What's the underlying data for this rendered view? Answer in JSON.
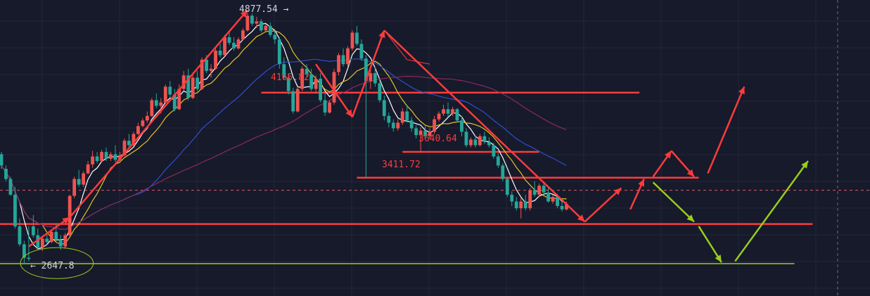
{
  "colors": {
    "background": "#161a2b",
    "grid": "#232838",
    "up": "#ef5350",
    "down": "#26a69a",
    "ma_white": "#ffffff",
    "ma_yellow": "#e6c229",
    "ma_blue": "#2f4fc9",
    "ma_purple": "#8a2a5c",
    "annotation_red": "#ff3b3b",
    "annotation_green": "#9acd1a",
    "crosshair": "#e05a6a",
    "price_label_light": "#d1d4dc"
  },
  "chart_data": {
    "type": "candlestick",
    "title": "",
    "xlabel": "",
    "ylabel": "",
    "ylim": [
      2500,
      5000
    ],
    "grid": true,
    "price_labels": {
      "high": "4877.54",
      "low": "2647.8",
      "level_1": "4166.82",
      "level_2": "3640.64",
      "level_3": "3411.72"
    },
    "candles": [
      [
        3620,
        3640,
        3520,
        3490
      ],
      [
        3490,
        3520,
        3400,
        3380
      ],
      [
        3400,
        3420,
        3260,
        3250
      ],
      [
        3260,
        3330,
        2980,
        2960
      ],
      [
        2980,
        3050,
        2820,
        2800
      ],
      [
        2820,
        2850,
        2700,
        2647.8
      ],
      [
        2700,
        2980,
        2690,
        2670
      ],
      [
        2980,
        3080,
        2900,
        2880
      ],
      [
        2900,
        2960,
        2790,
        2770
      ],
      [
        2790,
        2880,
        2870,
        2760
      ],
      [
        2870,
        2930,
        2840,
        2820
      ],
      [
        2840,
        2950,
        2930,
        2830
      ],
      [
        2930,
        3000,
        2860,
        2840
      ],
      [
        2860,
        2900,
        2800,
        2770
      ],
      [
        2800,
        2920,
        2900,
        2780
      ],
      [
        2900,
        3260,
        3250,
        2890
      ],
      [
        3250,
        3420,
        3400,
        3230
      ],
      [
        3400,
        3480,
        3350,
        3330
      ],
      [
        3350,
        3470,
        3450,
        3330
      ],
      [
        3450,
        3560,
        3530,
        3440
      ],
      [
        3530,
        3650,
        3600,
        3500
      ],
      [
        3600,
        3640,
        3560,
        3540
      ],
      [
        3560,
        3660,
        3640,
        3550
      ],
      [
        3640,
        3680,
        3580,
        3560
      ],
      [
        3580,
        3640,
        3620,
        3560
      ],
      [
        3620,
        3700,
        3570,
        3550
      ],
      [
        3570,
        3640,
        3610,
        3540
      ],
      [
        3610,
        3760,
        3740,
        3600
      ],
      [
        3740,
        3800,
        3700,
        3680
      ],
      [
        3700,
        3820,
        3800,
        3690
      ],
      [
        3800,
        3900,
        3870,
        3790
      ],
      [
        3870,
        3940,
        3920,
        3860
      ],
      [
        3920,
        4000,
        3960,
        3900
      ],
      [
        3960,
        4120,
        4100,
        3950
      ],
      [
        4100,
        4160,
        4050,
        4030
      ],
      [
        4050,
        4120,
        4080,
        3980
      ],
      [
        4080,
        4240,
        4220,
        4070
      ],
      [
        4220,
        4270,
        4150,
        4120
      ],
      [
        4150,
        4200,
        4020,
        4000
      ],
      [
        4020,
        4240,
        4200,
        4010
      ],
      [
        4200,
        4360,
        4320,
        4190
      ],
      [
        4320,
        4380,
        4120,
        4100
      ],
      [
        4120,
        4340,
        4300,
        4110
      ],
      [
        4300,
        4360,
        4200,
        4180
      ],
      [
        4200,
        4480,
        4460,
        4190
      ],
      [
        4460,
        4500,
        4360,
        4340
      ],
      [
        4360,
        4420,
        4380,
        4300
      ],
      [
        4380,
        4560,
        4540,
        4370
      ],
      [
        4540,
        4600,
        4500,
        4480
      ],
      [
        4500,
        4680,
        4660,
        4490
      ],
      [
        4660,
        4720,
        4610,
        4590
      ],
      [
        4610,
        4660,
        4560,
        4540
      ],
      [
        4560,
        4660,
        4640,
        4550
      ],
      [
        4640,
        4740,
        4720,
        4630
      ],
      [
        4720,
        4877.54,
        4850,
        4710
      ],
      [
        4850,
        4870,
        4780,
        4760
      ],
      [
        4780,
        4840,
        4800,
        4740
      ],
      [
        4800,
        4820,
        4720,
        4700
      ],
      [
        4720,
        4780,
        4760,
        4700
      ],
      [
        4760,
        4790,
        4680,
        4660
      ],
      [
        4680,
        4720,
        4640,
        4600
      ],
      [
        4640,
        4660,
        4420,
        4380
      ],
      [
        4420,
        4480,
        4300,
        4280
      ],
      [
        4300,
        4340,
        4180,
        4150
      ],
      [
        4180,
        4210,
        4000,
        3980
      ],
      [
        4000,
        4220,
        4200,
        3990
      ],
      [
        4200,
        4400,
        4380,
        4180
      ],
      [
        4380,
        4420,
        4330,
        4300
      ],
      [
        4330,
        4380,
        4200,
        4180
      ],
      [
        4200,
        4320,
        4290,
        4160
      ],
      [
        4290,
        4340,
        4100,
        4080
      ],
      [
        4100,
        4160,
        3990,
        3960
      ],
      [
        3990,
        4100,
        4080,
        3980
      ],
      [
        4080,
        4380,
        4350,
        4060
      ],
      [
        4350,
        4520,
        4500,
        4320
      ],
      [
        4500,
        4560,
        4420,
        4400
      ],
      [
        4420,
        4580,
        4560,
        4400
      ],
      [
        4560,
        4720,
        4700,
        4540
      ],
      [
        4700,
        4760,
        4600,
        4580
      ],
      [
        4600,
        4640,
        4470,
        4450
      ],
      [
        4470,
        4500,
        4270,
        3411.72
      ],
      [
        4270,
        4380,
        4340,
        4200
      ],
      [
        4340,
        4400,
        4250,
        4220
      ],
      [
        4250,
        4270,
        4100,
        4080
      ],
      [
        4100,
        4140,
        3960,
        3920
      ],
      [
        3960,
        3990,
        3900,
        3860
      ],
      [
        3900,
        3930,
        3850,
        3820
      ],
      [
        3850,
        3930,
        3900,
        3830
      ],
      [
        3900,
        4030,
        4000,
        3880
      ],
      [
        4000,
        4060,
        3920,
        3900
      ],
      [
        3920,
        3950,
        3850,
        3820
      ],
      [
        3850,
        3880,
        3790,
        3760
      ],
      [
        3790,
        3860,
        3830,
        3640.64
      ],
      [
        3830,
        3880,
        3780,
        3760
      ],
      [
        3780,
        3850,
        3820,
        3760
      ],
      [
        3820,
        3960,
        3930,
        3800
      ],
      [
        3930,
        4000,
        3980,
        3910
      ],
      [
        3980,
        4060,
        4020,
        3960
      ],
      [
        4020,
        4080,
        3980,
        3950
      ],
      [
        3980,
        4040,
        4020,
        3960
      ],
      [
        4020,
        4030,
        3920,
        3900
      ],
      [
        3920,
        3960,
        3820,
        3780
      ],
      [
        3820,
        3850,
        3700,
        3680
      ],
      [
        3700,
        3770,
        3750,
        3680
      ],
      [
        3750,
        3790,
        3700,
        3680
      ],
      [
        3700,
        3800,
        3780,
        3690
      ],
      [
        3780,
        3820,
        3730,
        3710
      ],
      [
        3730,
        3770,
        3700,
        3680
      ],
      [
        3700,
        3720,
        3600,
        3580
      ],
      [
        3600,
        3630,
        3520,
        3500
      ],
      [
        3520,
        3540,
        3400,
        3380
      ],
      [
        3400,
        3420,
        3260,
        3240
      ],
      [
        3260,
        3290,
        3200,
        3160
      ],
      [
        3200,
        3240,
        3140,
        3120
      ],
      [
        3140,
        3230,
        3200,
        3050
      ],
      [
        3200,
        3260,
        3140,
        3120
      ],
      [
        3140,
        3320,
        3300,
        3120
      ],
      [
        3300,
        3380,
        3260,
        3240
      ],
      [
        3260,
        3360,
        3340,
        3240
      ],
      [
        3340,
        3380,
        3280,
        3260
      ],
      [
        3280,
        3320,
        3200,
        3190
      ],
      [
        3200,
        3260,
        3240,
        3180
      ],
      [
        3240,
        3270,
        3160,
        3140
      ],
      [
        3160,
        3200,
        3130,
        3110
      ],
      [
        3130,
        3200,
        3180,
        3120
      ]
    ],
    "moving_averages": [
      {
        "key": "ma_white",
        "period": 5
      },
      {
        "key": "ma_yellow",
        "period": 10
      },
      {
        "key": "ma_blue",
        "period": 30
      },
      {
        "key": "ma_purple",
        "period": 60
      }
    ],
    "horizontal_levels": [
      {
        "key": "level_1",
        "price": 4166.82,
        "from": 57,
        "to": 140,
        "color": "annotation_red"
      },
      {
        "key": "level_2",
        "price": 3640.64,
        "from": 88,
        "to": 118,
        "color": "annotation_red"
      },
      {
        "key": "level_3",
        "price": 3411.72,
        "from": 78,
        "to": 153,
        "color": "annotation_red"
      },
      {
        "key": "support",
        "price": 3000,
        "from": -6,
        "to": 178,
        "color": "annotation_red"
      },
      {
        "key": "low_line",
        "price": 2647.8,
        "from": -4,
        "to": 174,
        "color": "annotation_green"
      }
    ],
    "crosshair_price": 3300,
    "trend_arrows": [
      {
        "from": [
          6,
          2800
        ],
        "to": [
          15,
          3060
        ],
        "color": "annotation_red"
      },
      {
        "from": [
          15,
          3060
        ],
        "to": [
          54,
          4900
        ],
        "color": "annotation_red"
      },
      {
        "from": [
          69,
          4420
        ],
        "to": [
          77,
          3950
        ],
        "color": "annotation_red"
      },
      {
        "from": [
          77,
          3950
        ],
        "to": [
          84,
          4720
        ],
        "color": "annotation_red"
      },
      {
        "from": [
          84,
          4720
        ],
        "to": [
          128,
          3020
        ],
        "color": "annotation_red"
      },
      {
        "from": [
          128,
          3020
        ],
        "to": [
          136,
          3320
        ],
        "color": "annotation_red"
      },
      {
        "from": [
          138,
          3130
        ],
        "to": [
          141,
          3400
        ],
        "color": "annotation_red"
      },
      {
        "from": [
          143,
          3420
        ],
        "to": [
          147,
          3650
        ],
        "color": "annotation_red"
      },
      {
        "from": [
          147,
          3650
        ],
        "to": [
          152,
          3420
        ],
        "color": "annotation_red"
      },
      {
        "from": [
          155,
          3450
        ],
        "to": [
          163,
          4220
        ],
        "color": "annotation_red"
      },
      {
        "from": [
          143,
          3370
        ],
        "to": [
          152,
          3020
        ],
        "color": "annotation_green"
      },
      {
        "from": [
          153,
          2980
        ],
        "to": [
          158,
          2660
        ],
        "color": "annotation_green"
      },
      {
        "from": [
          161,
          2670
        ],
        "to": [
          177,
          3560
        ],
        "color": "annotation_green"
      }
    ],
    "annotation_zigzag": [
      [
        84,
        4720
      ],
      [
        89,
        4460
      ],
      [
        94,
        4420
      ]
    ],
    "low_ellipse": {
      "center": [
        6,
        2740
      ],
      "rx_candles": 8,
      "ry_price": 140
    }
  }
}
